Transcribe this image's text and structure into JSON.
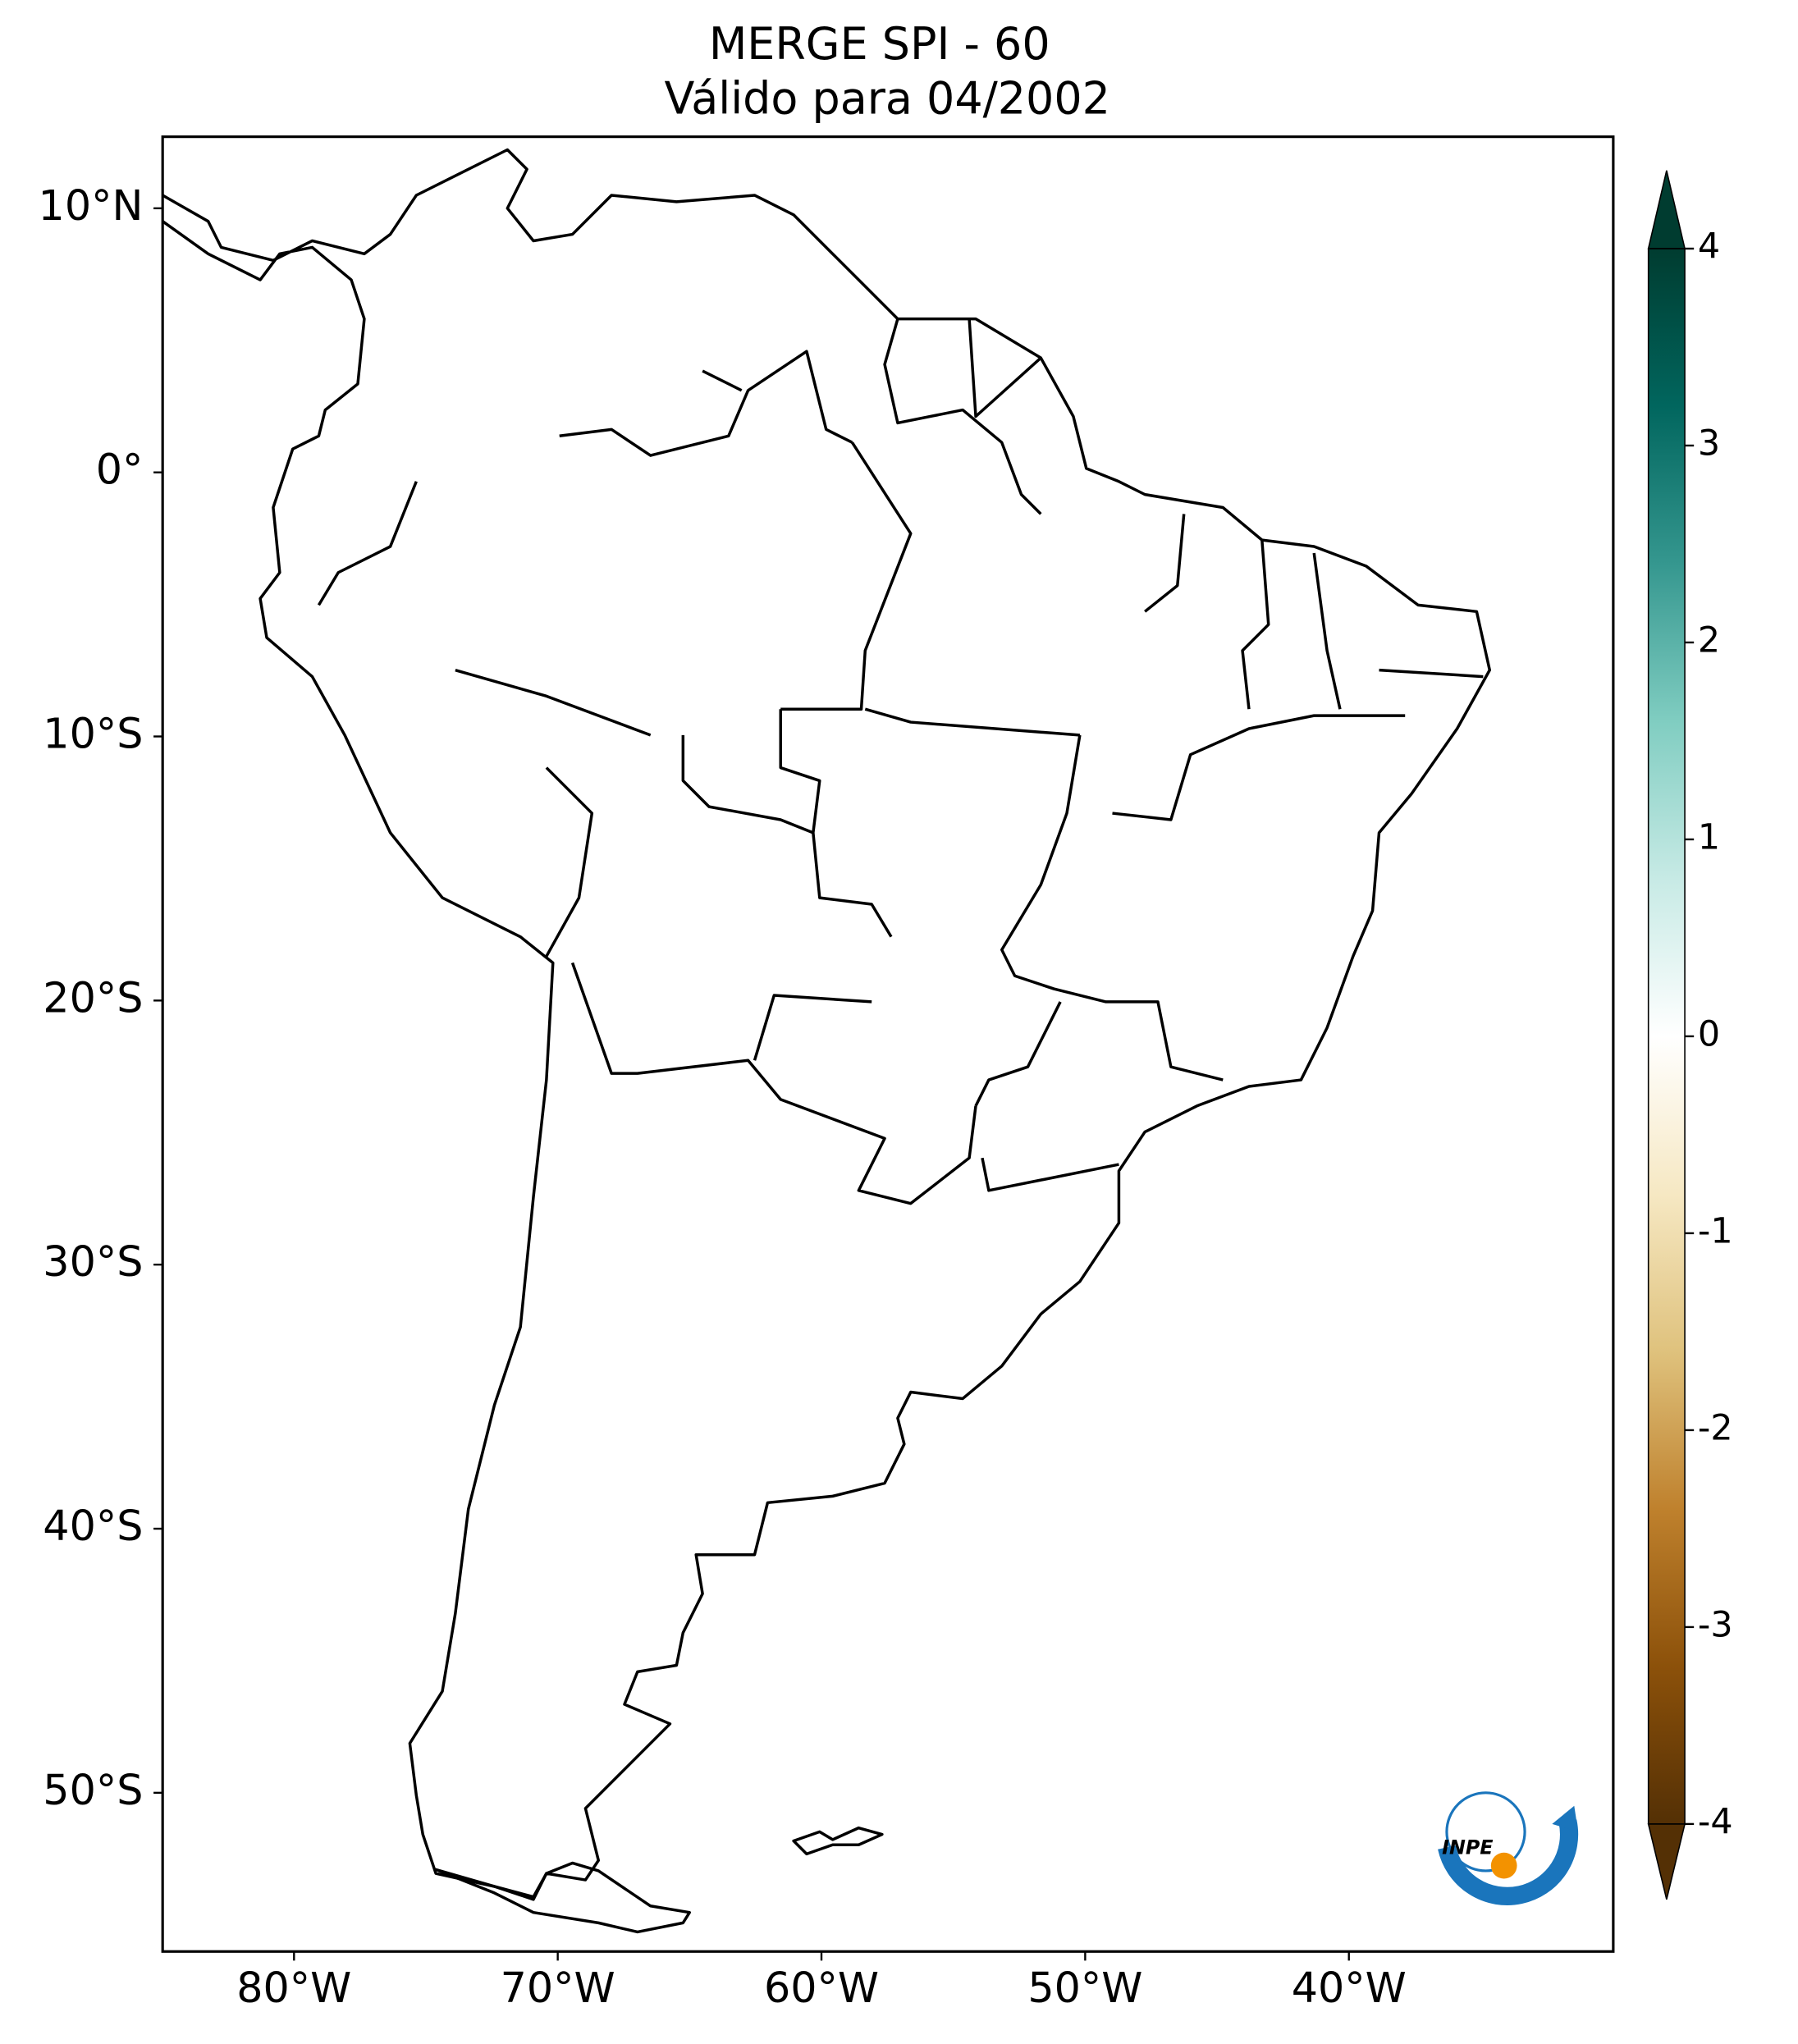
{
  "map": {
    "title": [
      "MERGE   SPI - 60",
      "Válido para 04/2002"
    ],
    "lat_labels": [
      "10°N",
      "0°",
      "10°S",
      "20°S",
      "30°S",
      "40°S",
      "50°S"
    ],
    "lon_labels": [
      "80°W",
      "70°W",
      "60°W",
      "50°W",
      "40°W"
    ],
    "colorbar": {
      "ticks": [
        4,
        3,
        2,
        1,
        0,
        -1,
        -2,
        -3,
        -4
      ],
      "colors": [
        "#003c30",
        "#01665e",
        "#35978f",
        "#80cdc1",
        "#c7eae5",
        "#ffffff",
        "#f6e8c3",
        "#dfc27d",
        "#bf812d",
        "#8c510a",
        "#543005"
      ],
      "extend": "both"
    },
    "logo_text": "INPE"
  }
}
